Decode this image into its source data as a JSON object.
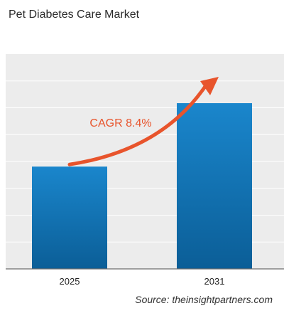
{
  "title": "Pet Diabetes Care Market",
  "source": "Source: theinsightpartners.com",
  "colors": {
    "bar_top": "#1a86cc",
    "bar_bottom": "#0b5e97",
    "plot_bg": "#ececec",
    "arrow": "#e8542c",
    "cagr_text": "#e8542c"
  },
  "chart_data": {
    "type": "bar",
    "categories": [
      "2025",
      "2031"
    ],
    "values": [
      100,
      162
    ],
    "annotation": "CAGR 8.4%",
    "ylim": [
      0,
      210
    ],
    "grid": true,
    "legend": "none"
  }
}
